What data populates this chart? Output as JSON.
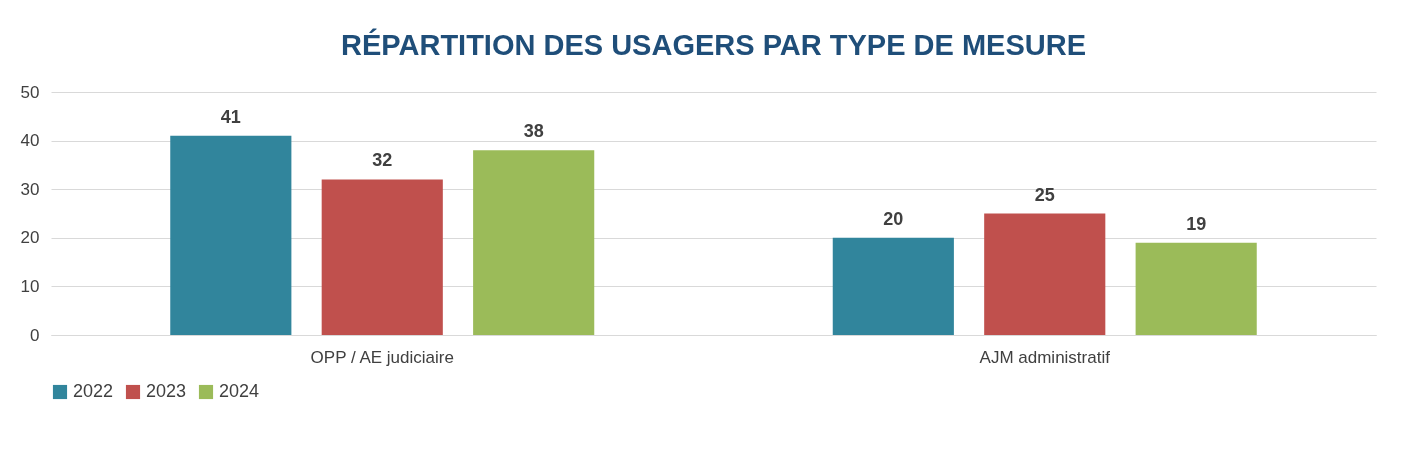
{
  "chart_data": {
    "type": "bar",
    "title": "RÉPARTITION DES USAGERS PAR TYPE DE MESURE",
    "categories": [
      "OPP / AE judiciaire",
      "AJM administratif"
    ],
    "series": [
      {
        "name": "2022",
        "color": "#31859c",
        "values": [
          41,
          20
        ]
      },
      {
        "name": "2023",
        "color": "#c0504d",
        "values": [
          32,
          25
        ]
      },
      {
        "name": "2024",
        "color": "#9bbb59",
        "values": [
          38,
          19
        ]
      }
    ],
    "ylim": [
      0,
      50
    ],
    "yticks": [
      0,
      10,
      20,
      30,
      40,
      50
    ],
    "grid": "y",
    "legend": "bottom",
    "data_labels": true
  }
}
